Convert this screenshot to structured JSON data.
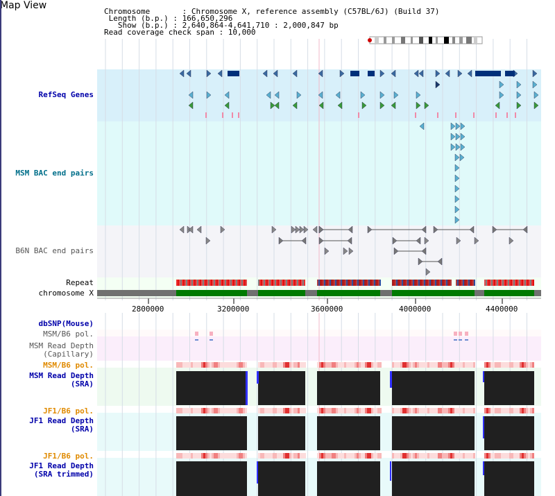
{
  "title": "Map View",
  "header": {
    "chromosome": "Chromosome       : Chromosome X, reference assembly (C57BL/6J) (Build 37)",
    "length": " Length (b.p.) : 166,650,296",
    "show": "   Show (b.p.) : 2,640,864-4,641,710 : 2,000,847 bp",
    "coverage": "Read coverage check span : 10,000"
  },
  "tracks": {
    "refseq": "RefSeq Genes",
    "msm_bac": "MSM BAC end pairs",
    "b6n_bac": "B6N BAC end pairs",
    "repeat": "Repeat",
    "chromosome": "chromosome X",
    "dbsnp": "dbSNP(Mouse)",
    "msm_b6_pol_1": "MSM/B6 pol.",
    "msm_depth_cap": "MSM Read Depth\n(Capillary)",
    "msm_b6_pol_2": "MSM/B6 pol.",
    "msm_depth_sra": "MSM Read Depth\n(SRA)",
    "jf1_b6_pol_1": "JF1/B6 pol.",
    "jf1_depth_sra": "JF1 Read Depth\n(SRA)",
    "jf1_b6_pol_2": "JF1/B6 pol.",
    "jf1_depth_trim": "JF1 Read Depth\n(SRA trimmed)"
  },
  "axis": {
    "ticks": [
      "2800000",
      "3200000",
      "3600000",
      "4000000",
      "4400000"
    ]
  },
  "colors": {
    "refseq_bg": "#d8f0fa",
    "bac_bg": "#e0fafa",
    "b6n_bg": "#f4f4f8",
    "cap_bg": "#fbeefb",
    "depth_bg": "#eefaf0",
    "gene_dark": "#00307a",
    "gene_light": "#5ab0d0",
    "gene_green": "#3a9a3a",
    "chromosome_green": "#007a00",
    "depth_block": "#202020",
    "depth_edge": "#3030ff"
  }
}
